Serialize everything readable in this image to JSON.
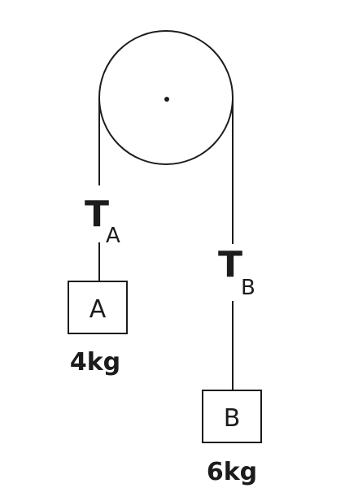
{
  "pulley": {
    "has_axle_dot": true
  },
  "tensions": {
    "a": {
      "symbol": "T",
      "subscript": "A"
    },
    "b": {
      "symbol": "T",
      "subscript": "B"
    }
  },
  "blocks": {
    "a": {
      "label": "A",
      "mass": "4kg"
    },
    "b": {
      "label": "B",
      "mass": "6kg"
    }
  },
  "colors": {
    "ink": "#1c1c1c",
    "background": "#ffffff"
  }
}
